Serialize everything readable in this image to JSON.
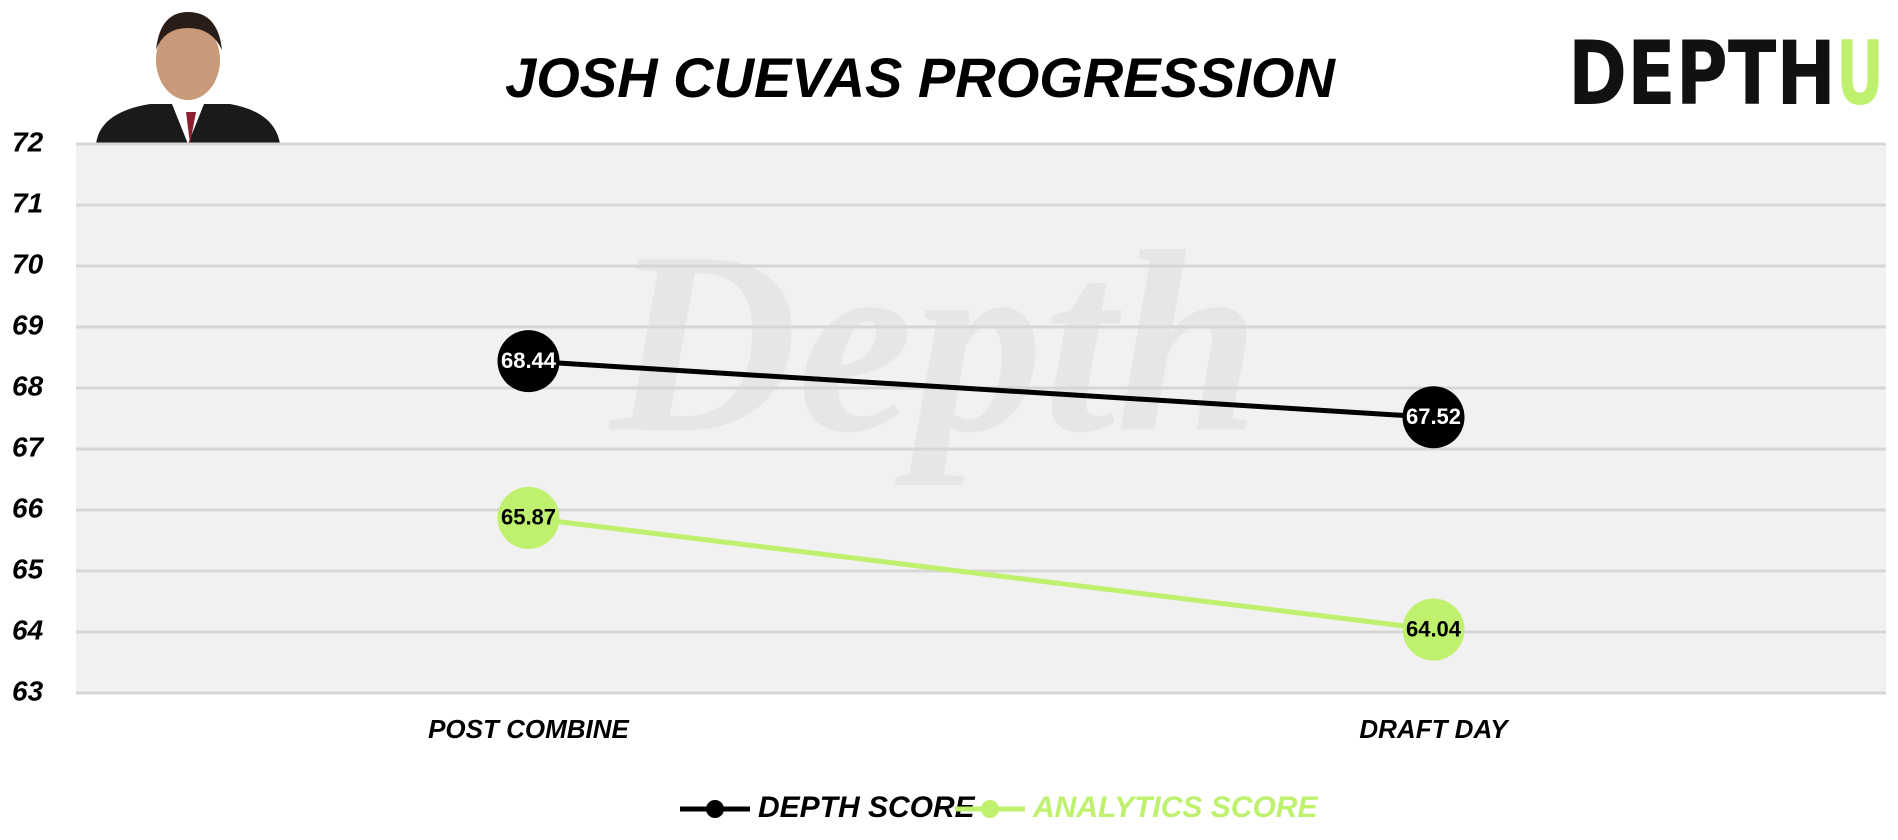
{
  "chart_data": {
    "type": "line",
    "title": "JOSH CUEVAS PROGRESSION",
    "logo": {
      "main": "DEPTH",
      "accent": "U"
    },
    "watermark": "Depth",
    "categories": [
      "POST COMBINE",
      "DRAFT DAY"
    ],
    "series": [
      {
        "name": "DEPTH SCORE",
        "color": "#000000",
        "values": [
          68.44,
          67.52
        ]
      },
      {
        "name": "ANALYTICS SCORE",
        "color": "#bff06e",
        "values": [
          65.87,
          64.04
        ]
      }
    ],
    "ylim": [
      63,
      72
    ],
    "yticks": [
      63,
      64,
      65,
      66,
      67,
      68,
      69,
      70,
      71,
      72
    ],
    "grid": true
  }
}
